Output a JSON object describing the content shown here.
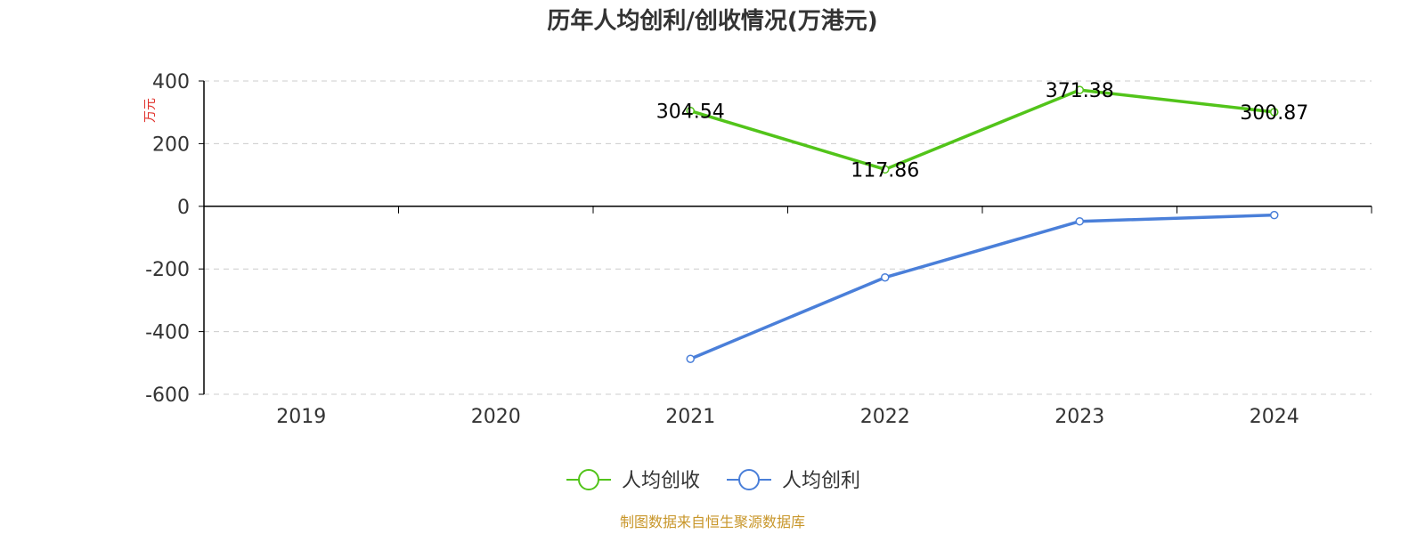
{
  "chart_data": {
    "type": "line",
    "title": "历年人均创利/创收情况(万港元)",
    "ylabel": "万元",
    "categories": [
      "2019",
      "2020",
      "2021",
      "2022",
      "2023",
      "2024"
    ],
    "ylim": [
      -600,
      400
    ],
    "yticks": [
      400,
      200,
      0,
      -200,
      -400,
      -600
    ],
    "grid": true,
    "legend_position": "bottom-center",
    "series": [
      {
        "name": "人均创收",
        "color": "#52c41a",
        "values": [
          null,
          null,
          304.54,
          117.86,
          371.38,
          300.87
        ],
        "data_labels": [
          null,
          null,
          "304.54",
          "117.86",
          "371.38",
          "300.87"
        ],
        "marker": "hollow-circle"
      },
      {
        "name": "人均创利",
        "color": "#4a7fd9",
        "values": [
          null,
          null,
          -487,
          -227,
          -48,
          -28
        ],
        "marker": "hollow-circle"
      }
    ]
  },
  "source_text": "制图数据来自恒生聚源数据库",
  "colors": {
    "axis": "#000000",
    "grid": "#cccccc",
    "ylabel": "#e0302a",
    "source": "#c8962a",
    "text": "#333333"
  }
}
